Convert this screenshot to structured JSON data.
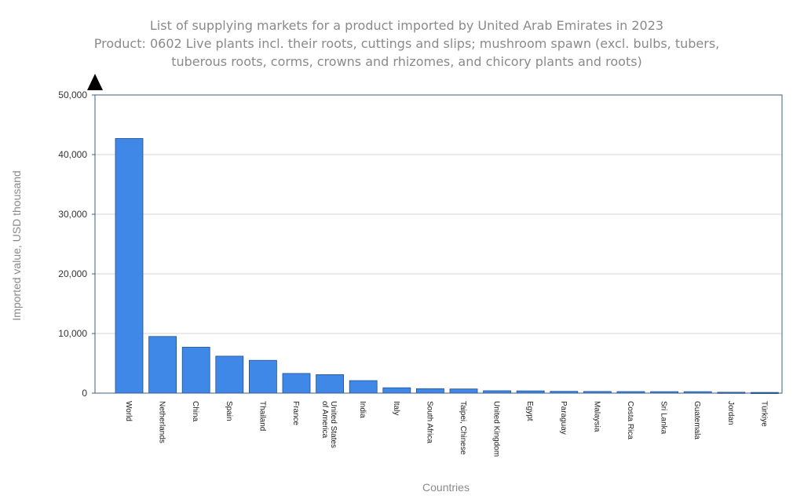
{
  "chart_data": {
    "type": "bar",
    "title": [
      "List of supplying markets for a product imported by United Arab Emirates in 2023",
      "Product: 0602 Live plants incl. their roots, cuttings and slips; mushroom spawn (excl. bulbs, tubers,",
      "tuberous roots, corms, crowns and rhizomes, and chicory plants and roots)"
    ],
    "xlabel": "Countries",
    "ylabel": "Imported value, USD thousand",
    "ylim": [
      0,
      50000
    ],
    "yticks": [
      0,
      10000,
      20000,
      30000,
      40000,
      50000
    ],
    "ytick_labels": [
      "0",
      "10,000",
      "20,000",
      "30,000",
      "40,000",
      "50,000"
    ],
    "grid": true,
    "bar_color": "#3f88e8",
    "categories": [
      "World",
      "Netherlands",
      "China",
      "Spain",
      "Thailand",
      "France",
      "United States of America",
      "India",
      "Italy",
      "South Africa",
      "Taipei, Chinese",
      "United Kingdom",
      "Egypt",
      "Paraguay",
      "Malaysia",
      "Costa Rica",
      "Sri Lanka",
      "Guatemala",
      "Jordan",
      "Türkiye"
    ],
    "category_lines": [
      [
        "World"
      ],
      [
        "Netherlands"
      ],
      [
        "China"
      ],
      [
        "Spain"
      ],
      [
        "Thailand"
      ],
      [
        "France"
      ],
      [
        "United States",
        "of America"
      ],
      [
        "India"
      ],
      [
        "Italy"
      ],
      [
        "South Africa"
      ],
      [
        "Taipei, Chinese"
      ],
      [
        "United Kingdom"
      ],
      [
        "Egypt"
      ],
      [
        "Paraguay"
      ],
      [
        "Malaysia"
      ],
      [
        "Costa Rica"
      ],
      [
        "Sri Lanka"
      ],
      [
        "Guatemala"
      ],
      [
        "Jordan"
      ],
      [
        "Türkiye"
      ]
    ],
    "values": [
      42700,
      9500,
      7700,
      6200,
      5500,
      3300,
      3100,
      2100,
      900,
      750,
      700,
      400,
      380,
      300,
      280,
      260,
      250,
      250,
      150,
      120
    ]
  }
}
